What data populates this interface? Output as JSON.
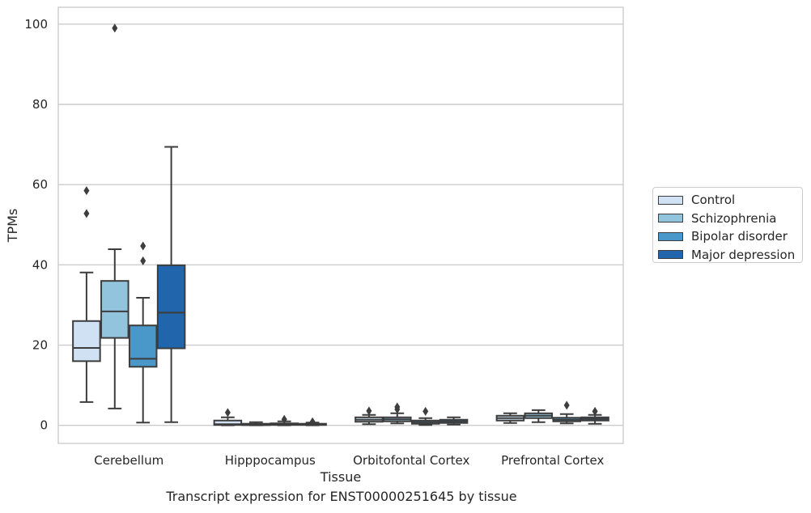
{
  "chart_data": {
    "type": "box",
    "title": "Transcript expression for ENST00000251645 by tissue",
    "xlabel": "Tissue",
    "ylabel": "TPMs",
    "ylim": [
      -4.5,
      104.2
    ],
    "yticks": [
      0,
      20,
      40,
      60,
      80,
      100
    ],
    "grid": true,
    "legend_position": "right",
    "categories": [
      "Cerebellum",
      "Hipppocampus",
      "Orbitofontal Cortex",
      "Prefrontal Cortex"
    ],
    "series": [
      {
        "name": "Control",
        "color": "#cfe1f2",
        "boxes": [
          {
            "whislo": 5.8,
            "q1": 16.0,
            "med": 19.3,
            "q3": 26.0,
            "whishi": 38.1,
            "fliers": [
              52.8,
              58.5
            ]
          },
          {
            "whislo": 0.0,
            "q1": 0.1,
            "med": 0.3,
            "q3": 1.2,
            "whishi": 2.0,
            "fliers": [
              3.2
            ]
          },
          {
            "whislo": 0.3,
            "q1": 0.9,
            "med": 1.4,
            "q3": 2.0,
            "whishi": 2.6,
            "fliers": [
              3.6
            ]
          },
          {
            "whislo": 0.6,
            "q1": 1.2,
            "med": 1.8,
            "q3": 2.4,
            "whishi": 3.0,
            "fliers": []
          }
        ]
      },
      {
        "name": "Schizophrenia",
        "color": "#93c4de",
        "boxes": [
          {
            "whislo": 4.2,
            "q1": 21.8,
            "med": 28.4,
            "q3": 36.0,
            "whishi": 43.9,
            "fliers": [
              99.0
            ]
          },
          {
            "whislo": 0.0,
            "q1": 0.05,
            "med": 0.15,
            "q3": 0.4,
            "whishi": 0.8,
            "fliers": []
          },
          {
            "whislo": 0.5,
            "q1": 1.0,
            "med": 1.5,
            "q3": 2.0,
            "whishi": 3.0,
            "fliers": [
              4.0,
              4.6
            ]
          },
          {
            "whislo": 0.8,
            "q1": 1.8,
            "med": 2.4,
            "q3": 3.0,
            "whishi": 3.8,
            "fliers": []
          }
        ]
      },
      {
        "name": "Bipolar disorder",
        "color": "#4a98c9",
        "boxes": [
          {
            "whislo": 0.7,
            "q1": 14.6,
            "med": 16.6,
            "q3": 24.9,
            "whishi": 31.8,
            "fliers": [
              41.0,
              44.7
            ]
          },
          {
            "whislo": 0.0,
            "q1": 0.1,
            "med": 0.2,
            "q3": 0.5,
            "whishi": 1.0,
            "fliers": [
              1.5
            ]
          },
          {
            "whislo": 0.1,
            "q1": 0.4,
            "med": 0.8,
            "q3": 1.2,
            "whishi": 1.8,
            "fliers": [
              3.5
            ]
          },
          {
            "whislo": 0.5,
            "q1": 1.0,
            "med": 1.4,
            "q3": 1.9,
            "whishi": 2.8,
            "fliers": [
              5.0
            ]
          }
        ]
      },
      {
        "name": "Major depression",
        "color": "#2166ac",
        "boxes": [
          {
            "whislo": 0.8,
            "q1": 19.2,
            "med": 28.1,
            "q3": 39.9,
            "whishi": 69.4,
            "fliers": []
          },
          {
            "whislo": 0.0,
            "q1": 0.1,
            "med": 0.2,
            "q3": 0.4,
            "whishi": 0.7,
            "fliers": [
              0.9
            ]
          },
          {
            "whislo": 0.2,
            "q1": 0.6,
            "med": 1.0,
            "q3": 1.4,
            "whishi": 2.0,
            "fliers": []
          },
          {
            "whislo": 0.4,
            "q1": 1.2,
            "med": 1.6,
            "q3": 2.0,
            "whishi": 2.6,
            "fliers": [
              3.5
            ]
          }
        ]
      }
    ]
  }
}
